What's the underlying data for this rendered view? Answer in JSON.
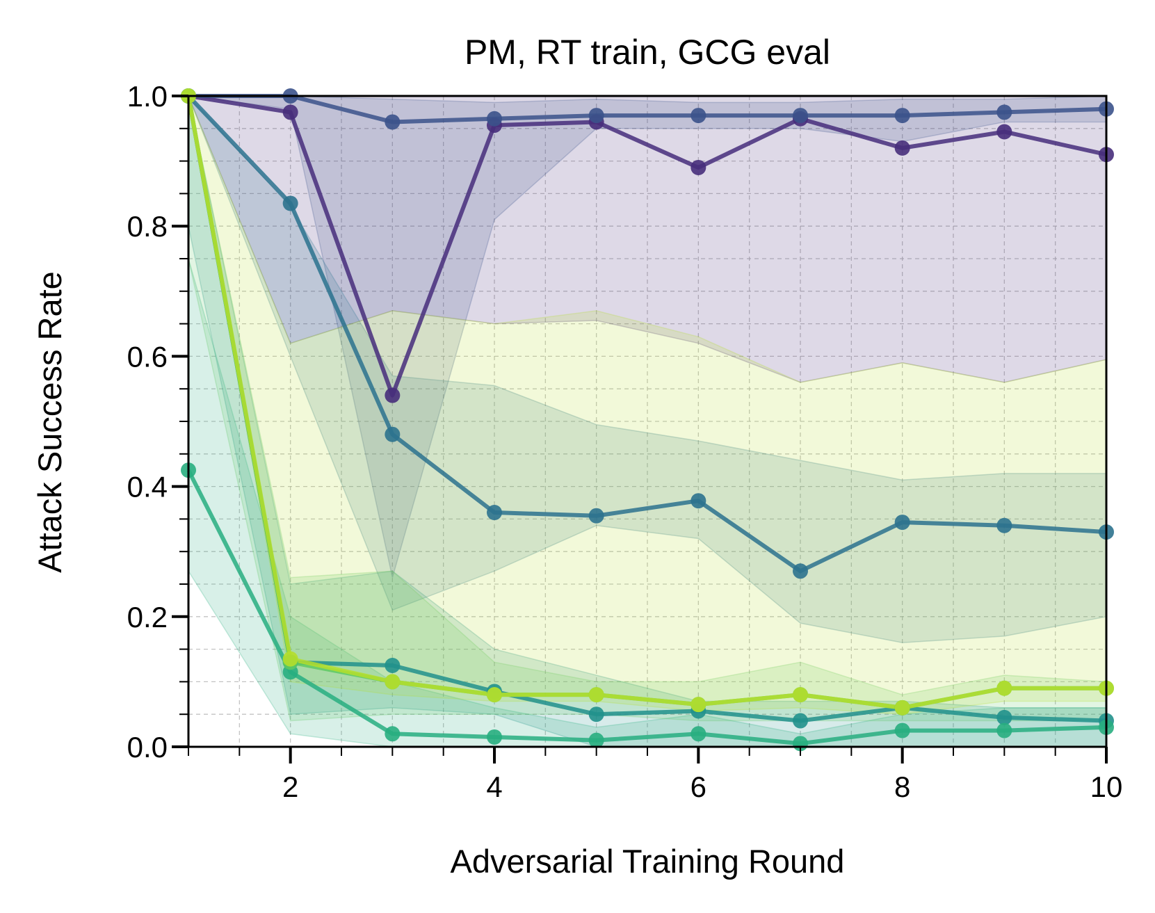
{
  "chart_data": {
    "type": "line",
    "title": "PM, RT train, GCG eval",
    "xlabel": "Adversarial Training Round",
    "ylabel": "Attack Success Rate",
    "xlim": [
      1,
      10
    ],
    "ylim": [
      0,
      1
    ],
    "x_ticks": [
      "2",
      "4",
      "6",
      "8",
      "10"
    ],
    "y_ticks": [
      "0.0",
      "0.2",
      "0.4",
      "0.6",
      "0.8",
      "1.0"
    ],
    "grid": true,
    "legend": "none",
    "x": [
      1,
      2,
      3,
      4,
      5,
      6,
      7,
      8,
      9,
      10
    ],
    "series": [
      {
        "color": "#472d7b",
        "values": [
          1.0,
          0.975,
          0.54,
          0.955,
          0.96,
          0.89,
          0.965,
          0.92,
          0.945,
          0.91
        ],
        "lower": [
          1.0,
          0.62,
          0.67,
          0.65,
          0.655,
          0.62,
          0.56,
          0.59,
          0.56,
          0.595
        ],
        "upper": [
          1.0,
          1.0,
          1.0,
          1.0,
          1.0,
          1.0,
          1.0,
          1.0,
          1.0,
          1.0
        ]
      },
      {
        "color": "#3b528b",
        "values": [
          1.0,
          1.0,
          0.96,
          0.965,
          0.97,
          0.97,
          0.97,
          0.97,
          0.975,
          0.98
        ],
        "lower": [
          1.0,
          0.98,
          0.26,
          0.81,
          0.95,
          0.95,
          0.95,
          0.93,
          0.96,
          0.96
        ],
        "upper": [
          1.0,
          1.0,
          0.995,
          0.99,
          0.995,
          0.99,
          0.99,
          0.995,
          0.995,
          1.0
        ]
      },
      {
        "color": "#2c728e",
        "values": [
          1.0,
          0.835,
          0.48,
          0.36,
          0.355,
          0.378,
          0.27,
          0.345,
          0.34,
          0.33
        ],
        "lower": [
          1.0,
          0.6,
          0.21,
          0.27,
          0.34,
          0.32,
          0.19,
          0.16,
          0.17,
          0.2
        ],
        "upper": [
          1.0,
          0.83,
          0.57,
          0.555,
          0.495,
          0.47,
          0.44,
          0.41,
          0.42,
          0.42
        ]
      },
      {
        "color": "#21918c",
        "values": [
          1.0,
          0.13,
          0.125,
          0.085,
          0.05,
          0.055,
          0.04,
          0.06,
          0.045,
          0.04
        ],
        "lower": [
          0.8,
          0.05,
          0.06,
          0.05,
          0.0,
          0.0,
          0.0,
          0.0,
          0.0,
          0.0
        ],
        "upper": [
          1.0,
          0.25,
          0.27,
          0.15,
          0.11,
          0.07,
          0.07,
          0.07,
          0.06,
          0.06
        ]
      },
      {
        "color": "#28ae80",
        "values": [
          0.425,
          0.115,
          0.02,
          0.015,
          0.01,
          0.02,
          0.005,
          0.025,
          0.025,
          0.03
        ],
        "lower": [
          0.27,
          0.02,
          0.0,
          0.0,
          0.0,
          0.0,
          0.0,
          0.0,
          0.0,
          0.0
        ],
        "upper": [
          0.75,
          0.2,
          0.1,
          0.06,
          0.03,
          0.05,
          0.02,
          0.05,
          0.06,
          0.06
        ]
      },
      {
        "color": "#5ec962",
        "values": [
          1.0,
          0.13,
          0.1,
          0.08,
          0.08,
          0.065,
          0.08,
          0.06,
          0.09,
          0.09
        ],
        "lower": [
          0.75,
          0.04,
          0.05,
          0.05,
          0.05,
          0.04,
          0.04,
          0.04,
          0.04,
          0.04
        ],
        "upper": [
          1.0,
          0.26,
          0.27,
          0.13,
          0.1,
          0.1,
          0.13,
          0.08,
          0.11,
          0.1
        ]
      },
      {
        "color": "#b5de2b",
        "values": [
          1.0,
          0.135,
          0.1,
          0.08,
          0.08,
          0.065,
          0.08,
          0.06,
          0.09,
          0.09
        ],
        "lower": [
          1.0,
          0.1,
          0.08,
          0.07,
          0.07,
          0.055,
          0.06,
          0.05,
          0.07,
          0.07
        ],
        "upper": [
          1.0,
          0.62,
          0.67,
          0.65,
          0.67,
          0.63,
          0.56,
          0.59,
          0.56,
          0.595
        ]
      }
    ]
  }
}
